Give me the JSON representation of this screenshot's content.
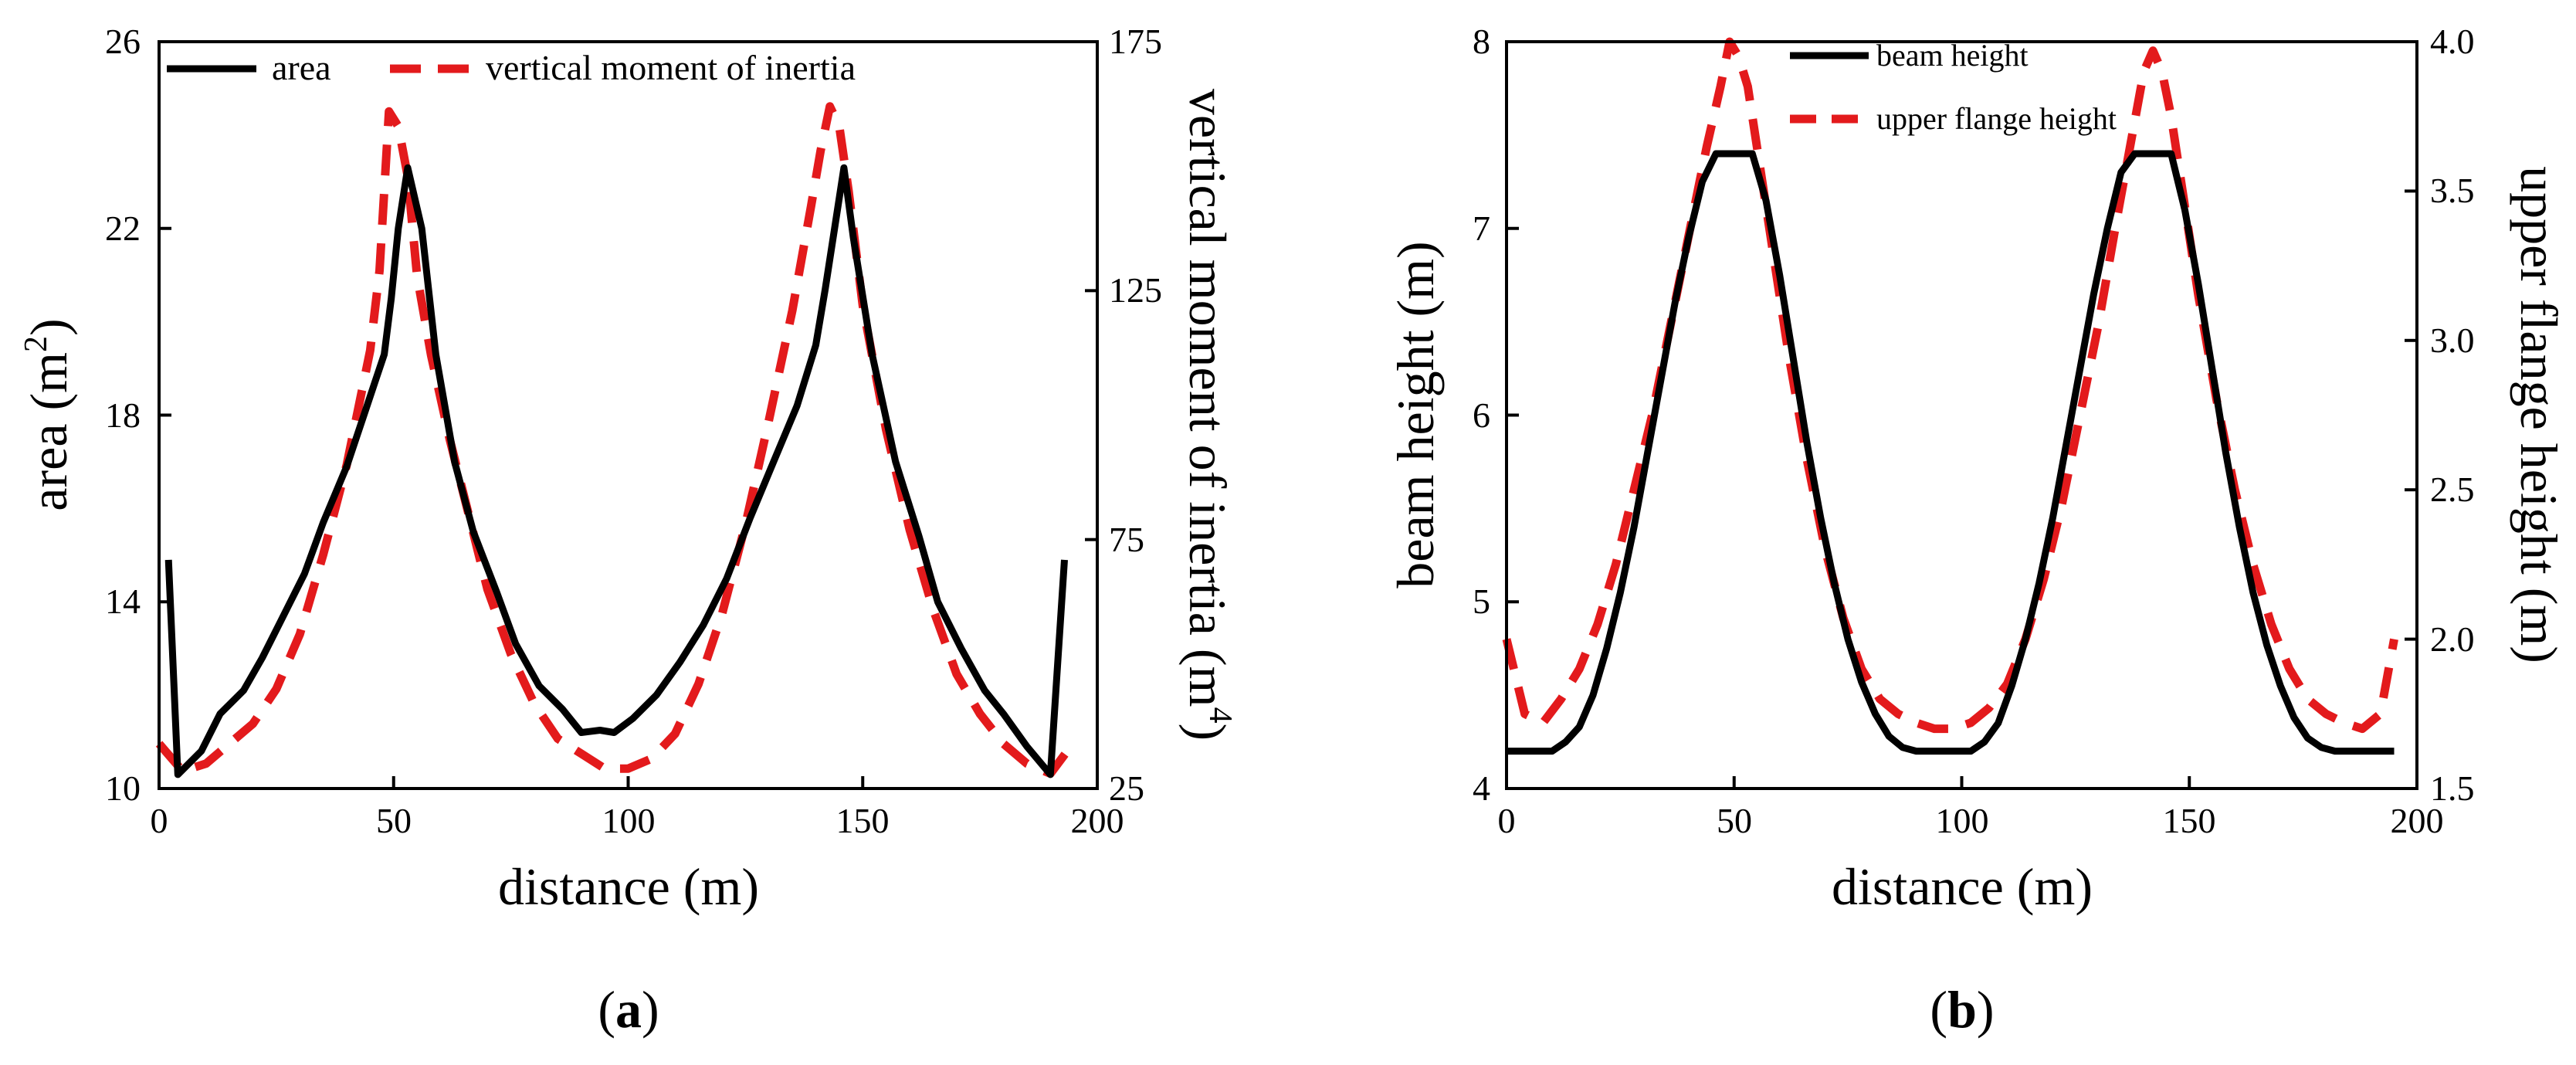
{
  "chart_data": [
    {
      "panel_label": "(a)",
      "panel_letter": "a",
      "type": "line",
      "title": "",
      "xlabel": "distance (m)",
      "ylabel_left_main": "area (m",
      "ylabel_left_sup": "2",
      "ylabel_left_end": ")",
      "ylabel_right_main": "vertical moment of inertia (m",
      "ylabel_right_sup": "4",
      "ylabel_right_end": ")",
      "xlim": [
        0,
        200
      ],
      "ylim_left": [
        10,
        26
      ],
      "ylim_right": [
        25,
        175
      ],
      "xticks": [
        "0",
        "50",
        "100",
        "150",
        "200"
      ],
      "yticks_left": [
        "10",
        "14",
        "18",
        "22",
        "26"
      ],
      "yticks_right": [
        "25",
        "75",
        "125",
        "175"
      ],
      "legend_position": "top",
      "colors": {
        "area": "#000000",
        "vertical moment of inertia": "#e31a1c"
      },
      "series": [
        {
          "name": "area",
          "axis": "left",
          "style": "solid",
          "x": [
            2,
            4,
            9,
            13,
            18,
            22,
            26,
            31,
            35,
            40,
            44,
            46,
            48,
            49.5,
            51,
            53,
            56,
            59,
            63,
            67,
            72,
            76,
            81,
            86,
            90,
            94,
            97,
            101,
            106,
            111,
            116,
            121,
            126,
            131,
            136,
            140,
            142,
            144,
            146,
            148,
            152,
            157,
            162,
            166,
            171,
            176,
            180,
            185,
            190,
            193
          ],
          "y": [
            14.9,
            10.3,
            10.8,
            11.6,
            12.1,
            12.8,
            13.6,
            14.6,
            15.7,
            16.9,
            18.1,
            18.7,
            19.3,
            20.5,
            22.0,
            23.3,
            22.0,
            19.3,
            17.0,
            15.5,
            14.2,
            13.1,
            12.2,
            11.7,
            11.2,
            11.25,
            11.2,
            11.5,
            12.0,
            12.7,
            13.5,
            14.5,
            15.8,
            17.0,
            18.2,
            19.5,
            20.7,
            22.0,
            23.3,
            21.8,
            19.3,
            17.0,
            15.4,
            14.0,
            13.0,
            12.1,
            11.6,
            10.9,
            10.3,
            14.9
          ]
        },
        {
          "name": "vertical moment of inertia",
          "axis": "right",
          "style": "dashed",
          "x": [
            0,
            5,
            10,
            15,
            20,
            25,
            30,
            35,
            40,
            45,
            47,
            49,
            51,
            53,
            55,
            58,
            62,
            66,
            70,
            75,
            80,
            85,
            90,
            95,
            100,
            105,
            110,
            115,
            120,
            125,
            130,
            135,
            139,
            141,
            143,
            145,
            147,
            150,
            155,
            160,
            165,
            170,
            175,
            180,
            185,
            190,
            194
          ],
          "y": [
            34,
            28.5,
            30,
            34,
            38,
            45,
            56,
            72,
            90,
            113,
            129,
            161,
            158,
            148,
            128,
            112,
            95,
            80,
            65,
            52,
            42,
            35,
            32,
            29,
            29,
            31,
            36,
            46,
            60,
            78,
            99,
            121,
            142,
            153,
            162,
            158,
            145,
            122,
            97,
            77,
            61,
            48,
            40,
            34,
            30,
            28,
            33
          ]
        }
      ]
    },
    {
      "panel_label": "(b)",
      "panel_letter": "b",
      "type": "line",
      "title": "",
      "xlabel": "distance (m)",
      "ylabel_left": "beam height (m)",
      "ylabel_right": "upper flange height (m)",
      "xlim": [
        0,
        200
      ],
      "ylim_left": [
        4,
        8
      ],
      "ylim_right": [
        1.5,
        4.0
      ],
      "xticks": [
        "0",
        "50",
        "100",
        "150",
        "200"
      ],
      "yticks_left": [
        "4",
        "5",
        "6",
        "7",
        "8"
      ],
      "yticks_right": [
        "1.5",
        "2.0",
        "2.5",
        "3.0",
        "3.5",
        "4.0"
      ],
      "legend_position": "top",
      "colors": {
        "beam height": "#000000",
        "upper flange height": "#e31a1c"
      },
      "series": [
        {
          "name": "beam height",
          "axis": "left",
          "style": "solid",
          "x": [
            0,
            5,
            10,
            13,
            16,
            19,
            22,
            25,
            28,
            31,
            34,
            37,
            40,
            43,
            46,
            48,
            50,
            52,
            54,
            57,
            60,
            63,
            66,
            69,
            72,
            75,
            78,
            81,
            84,
            87,
            90,
            93,
            96,
            99,
            102,
            105,
            108,
            111,
            114,
            117,
            120,
            123,
            126,
            129,
            132,
            135,
            138,
            140,
            142,
            144,
            146,
            149,
            152,
            155,
            158,
            161,
            164,
            167,
            170,
            173,
            176,
            179,
            182,
            185,
            190,
            195
          ],
          "y": [
            4.2,
            4.2,
            4.2,
            4.25,
            4.33,
            4.5,
            4.75,
            5.05,
            5.4,
            5.8,
            6.2,
            6.6,
            6.95,
            7.25,
            7.4,
            7.4,
            7.4,
            7.4,
            7.4,
            7.15,
            6.75,
            6.3,
            5.85,
            5.45,
            5.1,
            4.8,
            4.57,
            4.4,
            4.28,
            4.22,
            4.2,
            4.2,
            4.2,
            4.2,
            4.2,
            4.25,
            4.35,
            4.55,
            4.8,
            5.1,
            5.45,
            5.85,
            6.25,
            6.65,
            7.0,
            7.3,
            7.4,
            7.4,
            7.4,
            7.4,
            7.4,
            7.1,
            6.7,
            6.25,
            5.8,
            5.4,
            5.05,
            4.77,
            4.55,
            4.38,
            4.27,
            4.22,
            4.2,
            4.2,
            4.2,
            4.2
          ]
        },
        {
          "name": "upper flange height",
          "axis": "right",
          "style": "dashed",
          "x": [
            0,
            4,
            8,
            12,
            16,
            20,
            24,
            28,
            32,
            36,
            40,
            44,
            47,
            49,
            51,
            53,
            56,
            59,
            62,
            66,
            70,
            74,
            78,
            82,
            86,
            90,
            94,
            98,
            102,
            106,
            110,
            114,
            118,
            122,
            126,
            130,
            134,
            137,
            140,
            142,
            144,
            146,
            149,
            152,
            156,
            160,
            164,
            168,
            172,
            176,
            180,
            184,
            188,
            192,
            195
          ],
          "y": [
            2.0,
            1.75,
            1.72,
            1.8,
            1.9,
            2.05,
            2.25,
            2.5,
            2.75,
            3.05,
            3.35,
            3.65,
            3.85,
            4.0,
            3.95,
            3.85,
            3.55,
            3.25,
            2.95,
            2.6,
            2.3,
            2.07,
            1.9,
            1.8,
            1.75,
            1.72,
            1.7,
            1.7,
            1.72,
            1.77,
            1.85,
            2.0,
            2.2,
            2.45,
            2.75,
            3.05,
            3.4,
            3.65,
            3.9,
            3.97,
            3.9,
            3.75,
            3.45,
            3.15,
            2.8,
            2.5,
            2.25,
            2.05,
            1.9,
            1.8,
            1.75,
            1.72,
            1.7,
            1.75,
            2.0
          ]
        }
      ]
    }
  ]
}
